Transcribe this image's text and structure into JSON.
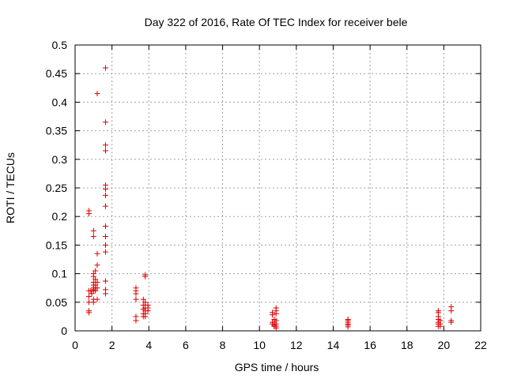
{
  "chart_data": {
    "type": "scatter",
    "title": "Day 322 of 2016, Rate Of TEC Index for receiver bele",
    "xlabel": "GPS time / hours",
    "ylabel": "ROTI / TECUs",
    "xlim": [
      0,
      22
    ],
    "ylim": [
      0,
      0.5
    ],
    "xticks": [
      0,
      2,
      4,
      6,
      8,
      10,
      12,
      14,
      16,
      18,
      20,
      22
    ],
    "yticks": [
      0,
      0.05,
      0.1,
      0.15,
      0.2,
      0.25,
      0.3,
      0.35,
      0.4,
      0.45,
      0.5
    ],
    "xtick_labels": [
      "0",
      "2",
      "4",
      "6",
      "8",
      "10",
      "12",
      "14",
      "16",
      "18",
      "20",
      "22"
    ],
    "ytick_labels": [
      "0",
      "0.05",
      "0.1",
      "0.15",
      "0.2",
      "0.25",
      "0.3",
      "0.35",
      "0.4",
      "0.45",
      "0.5"
    ],
    "grid": true,
    "marker": "+",
    "marker_color": "#dd0000",
    "series": [
      {
        "points": [
          [
            0.75,
            0.21
          ],
          [
            0.75,
            0.205
          ],
          [
            0.75,
            0.07
          ],
          [
            0.75,
            0.06
          ],
          [
            0.75,
            0.05
          ],
          [
            0.75,
            0.035
          ],
          [
            0.75,
            0.032
          ],
          [
            0.85,
            0.07
          ],
          [
            0.9,
            0.065
          ],
          [
            1.0,
            0.175
          ],
          [
            1.0,
            0.165
          ],
          [
            1.0,
            0.1
          ],
          [
            1.0,
            0.095
          ],
          [
            1.0,
            0.085
          ],
          [
            1.0,
            0.08
          ],
          [
            1.0,
            0.075
          ],
          [
            1.0,
            0.072
          ],
          [
            1.0,
            0.07
          ],
          [
            1.0,
            0.055
          ],
          [
            1.0,
            0.05
          ],
          [
            1.1,
            0.105
          ],
          [
            1.1,
            0.09
          ],
          [
            1.1,
            0.08
          ],
          [
            1.1,
            0.075
          ],
          [
            1.1,
            0.07
          ],
          [
            1.2,
            0.415
          ],
          [
            1.2,
            0.135
          ],
          [
            1.2,
            0.115
          ],
          [
            1.2,
            0.085
          ],
          [
            1.2,
            0.075
          ],
          [
            1.2,
            0.055
          ],
          [
            1.65,
            0.46
          ],
          [
            1.65,
            0.365
          ],
          [
            1.65,
            0.325
          ],
          [
            1.65,
            0.315
          ],
          [
            1.65,
            0.255
          ],
          [
            1.65,
            0.248
          ],
          [
            1.65,
            0.237
          ],
          [
            1.65,
            0.218
          ],
          [
            1.65,
            0.183
          ],
          [
            1.65,
            0.165
          ],
          [
            1.65,
            0.15
          ],
          [
            1.65,
            0.138
          ],
          [
            1.65,
            0.087
          ],
          [
            1.65,
            0.072
          ],
          [
            1.65,
            0.065
          ],
          [
            3.3,
            0.075
          ],
          [
            3.3,
            0.07
          ],
          [
            3.3,
            0.065
          ],
          [
            3.3,
            0.055
          ],
          [
            3.3,
            0.025
          ],
          [
            3.3,
            0.018
          ],
          [
            3.7,
            0.055
          ],
          [
            3.7,
            0.045
          ],
          [
            3.7,
            0.038
          ],
          [
            3.7,
            0.03
          ],
          [
            3.7,
            0.025
          ],
          [
            3.8,
            0.098
          ],
          [
            3.8,
            0.095
          ],
          [
            3.8,
            0.05
          ],
          [
            3.8,
            0.045
          ],
          [
            3.8,
            0.04
          ],
          [
            3.8,
            0.035
          ],
          [
            3.8,
            0.03
          ],
          [
            3.8,
            0.025
          ],
          [
            3.95,
            0.045
          ],
          [
            3.95,
            0.04
          ],
          [
            3.95,
            0.035
          ],
          [
            10.7,
            0.032
          ],
          [
            10.7,
            0.028
          ],
          [
            10.7,
            0.015
          ],
          [
            10.7,
            0.012
          ],
          [
            10.8,
            0.02
          ],
          [
            10.8,
            0.015
          ],
          [
            10.8,
            0.01
          ],
          [
            10.8,
            0.008
          ],
          [
            10.9,
            0.04
          ],
          [
            10.9,
            0.035
          ],
          [
            10.9,
            0.03
          ],
          [
            10.9,
            0.018
          ],
          [
            10.9,
            0.012
          ],
          [
            10.9,
            0.008
          ],
          [
            10.9,
            0.005
          ],
          [
            14.8,
            0.02
          ],
          [
            14.8,
            0.018
          ],
          [
            14.8,
            0.015
          ],
          [
            14.8,
            0.012
          ],
          [
            14.8,
            0.01
          ],
          [
            14.8,
            0.007
          ],
          [
            19.7,
            0.035
          ],
          [
            19.7,
            0.032
          ],
          [
            19.7,
            0.025
          ],
          [
            19.7,
            0.02
          ],
          [
            19.7,
            0.015
          ],
          [
            19.7,
            0.012
          ],
          [
            19.7,
            0.008
          ],
          [
            19.8,
            0.018
          ],
          [
            19.8,
            0.012
          ],
          [
            19.8,
            0.008
          ],
          [
            20.4,
            0.042
          ],
          [
            20.4,
            0.035
          ],
          [
            20.4,
            0.018
          ],
          [
            20.4,
            0.015
          ]
        ]
      }
    ]
  }
}
